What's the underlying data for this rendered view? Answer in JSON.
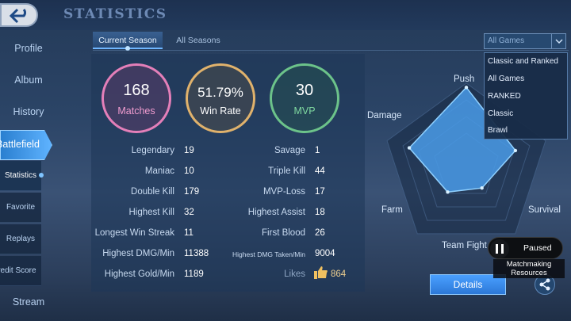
{
  "header": {
    "title": "STATISTICS"
  },
  "sidebar": {
    "items": [
      {
        "label": "Profile"
      },
      {
        "label": "Album"
      },
      {
        "label": "History"
      },
      {
        "label": "Battlefield"
      },
      {
        "label": "Stream"
      }
    ],
    "sub_items": [
      {
        "label": "Statistics"
      },
      {
        "label": "Favorite"
      },
      {
        "label": "Replays"
      },
      {
        "label": "Credit Score"
      }
    ]
  },
  "tabs": [
    {
      "label": "Current Season"
    },
    {
      "label": "All Seasons"
    }
  ],
  "summary": {
    "matches": {
      "value": "168",
      "label": "Matches"
    },
    "win_rate": {
      "value": "51.79%",
      "label": "Win Rate"
    },
    "mvp": {
      "value": "30",
      "label": "MVP"
    }
  },
  "stats_left": [
    {
      "label": "Legendary",
      "value": "19"
    },
    {
      "label": "Maniac",
      "value": "10"
    },
    {
      "label": "Double Kill",
      "value": "179"
    },
    {
      "label": "Highest Kill",
      "value": "32"
    },
    {
      "label": "Longest Win Streak",
      "value": "11"
    },
    {
      "label": "Highest DMG/Min",
      "value": "11388"
    },
    {
      "label": "Highest Gold/Min",
      "value": "1189"
    }
  ],
  "stats_right": [
    {
      "label": "Savage",
      "value": "1"
    },
    {
      "label": "Triple Kill",
      "value": "44"
    },
    {
      "label": "MVP-Loss",
      "value": "17"
    },
    {
      "label": "Highest Assist",
      "value": "18"
    },
    {
      "label": "First Blood",
      "value": "26"
    },
    {
      "label": "Highest DMG Taken/Min",
      "value": "9004"
    },
    {
      "label": "Likes",
      "value": "864"
    }
  ],
  "radar": {
    "axes": [
      "Push",
      "Survival",
      "Team Fight",
      "Farm",
      "Damage"
    ],
    "values": [
      0.95,
      0.62,
      0.32,
      0.38,
      0.72
    ]
  },
  "filter": {
    "selected": "All Games",
    "options": [
      "Classic and Ranked",
      "All Games",
      "RANKED",
      "Classic",
      "Brawl"
    ]
  },
  "buttons": {
    "details": "Details"
  },
  "overlay": {
    "paused": "Paused",
    "matchmaking": "Matchmaking Resources"
  },
  "colors": {
    "accent": "#4aa0ff",
    "matches": "#e47fb9",
    "win_rate": "#e0b26c",
    "mvp": "#6cc38a",
    "radar_fill": "#4a9be8"
  },
  "icons": [
    "back-arrow-icon",
    "chevron-down-icon",
    "thumbs-up-icon",
    "share-icon",
    "pause-icon"
  ]
}
